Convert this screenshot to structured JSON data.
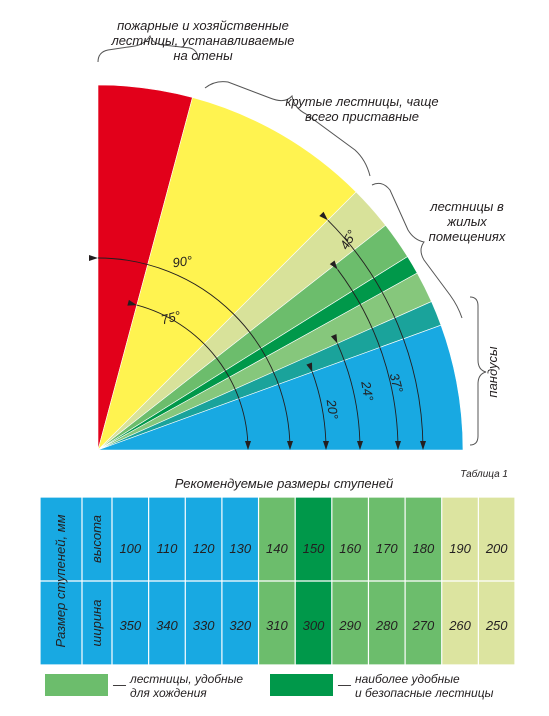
{
  "diagram": {
    "annotations": {
      "fire": [
        "пожарные и хозяйственные",
        "лестницы, устанавливаемые",
        "на стены"
      ],
      "steep": [
        "крутые лестницы, чаще",
        "всего приставные"
      ],
      "home": [
        "лестницы в",
        "жилых",
        "помещениях"
      ],
      "ramps": [
        "пандусы"
      ]
    },
    "angle_labels": [
      "90°",
      "75°",
      "45°",
      "37°",
      "24°",
      "20°"
    ]
  },
  "table": {
    "caption": "Таблица 1",
    "title": "Рекомендуемые размеры ступеней",
    "row_header": "Размер ступеней, мм",
    "row_labels": [
      "высота",
      "ширина"
    ],
    "columns": [
      {
        "height": 100,
        "width": 350,
        "color": "#18a9e2"
      },
      {
        "height": 110,
        "width": 340,
        "color": "#18a9e2"
      },
      {
        "height": 120,
        "width": 330,
        "color": "#18a9e2"
      },
      {
        "height": 130,
        "width": 320,
        "color": "#18a9e2"
      },
      {
        "height": 140,
        "width": 310,
        "color": "#6cbd6c"
      },
      {
        "height": 150,
        "width": 300,
        "color": "#00984a"
      },
      {
        "height": 160,
        "width": 290,
        "color": "#6cbd6c"
      },
      {
        "height": 170,
        "width": 280,
        "color": "#6cbd6c"
      },
      {
        "height": 180,
        "width": 270,
        "color": "#6cbd6c"
      },
      {
        "height": 190,
        "width": 260,
        "color": "#dce4a0"
      },
      {
        "height": 200,
        "width": 250,
        "color": "#dce4a0"
      }
    ]
  },
  "legend": [
    {
      "marker": "—",
      "lines": [
        "лестницы, удобные",
        "для хождения"
      ],
      "color": "#6cbd6c"
    },
    {
      "marker": "—",
      "lines": [
        "наиболее удобные",
        "и безопасные лестницы"
      ],
      "color": "#00984a"
    }
  ]
}
